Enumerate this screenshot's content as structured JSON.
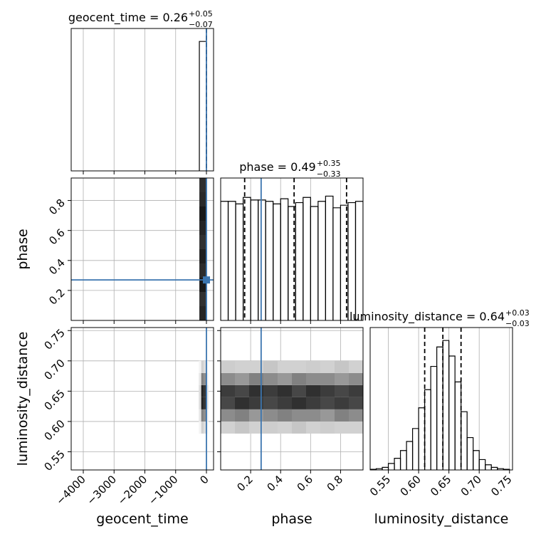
{
  "chart_data": {
    "type": "corner",
    "parameters": [
      {
        "label": "geocent_time",
        "title": "geocent_time = 0.26",
        "upper": "+0.05",
        "lower": "−0.07",
        "lim": [
          -4393,
          231
        ],
        "ticks": [
          {
            "value": -4000,
            "label": "−4000"
          },
          {
            "value": -3000,
            "label": "−3000"
          },
          {
            "value": -2000,
            "label": "−2000"
          },
          {
            "value": -1000,
            "label": "−1000"
          },
          0
        ],
        "quantiles": [
          0.19,
          0.26,
          0.31
        ],
        "truth": 0,
        "hist": {
          "bins": [
            -230,
            0
          ],
          "counts": [
            1.0
          ],
          "ylim": [
            0,
            1.1
          ]
        }
      },
      {
        "label": "phase",
        "title": "phase = 0.49",
        "upper": "+0.35",
        "lower": "−0.33",
        "lim": [
          0.0,
          0.95
        ],
        "ticks": [
          0.2,
          0.4,
          0.6,
          0.8
        ],
        "quantiles": [
          0.16,
          0.49,
          0.84
        ],
        "truth": 0.27,
        "hist": {
          "bins": [
            0.0,
            0.05,
            0.1,
            0.15,
            0.2,
            0.25,
            0.3,
            0.35,
            0.4,
            0.45,
            0.5,
            0.55,
            0.6,
            0.65,
            0.7,
            0.75,
            0.8,
            0.85,
            0.9,
            0.95
          ],
          "counts": [
            0.92,
            0.92,
            0.9,
            0.95,
            0.93,
            0.93,
            0.92,
            0.9,
            0.94,
            0.88,
            0.91,
            0.95,
            0.88,
            0.92,
            0.96,
            0.87,
            0.89,
            0.91,
            0.92
          ],
          "ylim": [
            0,
            1.1
          ]
        }
      },
      {
        "label": "luminosity_distance",
        "title": "luminosity_distance = 0.64",
        "upper": "+0.03",
        "lower": "−0.03",
        "lim": [
          0.52,
          0.755
        ],
        "ticks": [
          0.55,
          {
            "value": 0.6,
            "label": "0.60"
          },
          0.65,
          {
            "value": 0.7,
            "label": "0.70"
          },
          0.75
        ],
        "quantiles": [
          0.61,
          0.64,
          0.67
        ],
        "truth": null,
        "hist": {
          "bins": [
            0.52,
            0.53,
            0.54,
            0.55,
            0.56,
            0.57,
            0.58,
            0.59,
            0.6,
            0.61,
            0.62,
            0.63,
            0.64,
            0.65,
            0.66,
            0.67,
            0.68,
            0.69,
            0.7,
            0.71,
            0.72,
            0.73,
            0.74,
            0.75
          ],
          "counts": [
            0.005,
            0.01,
            0.02,
            0.05,
            0.09,
            0.15,
            0.22,
            0.32,
            0.48,
            0.62,
            0.8,
            0.95,
            1.0,
            0.88,
            0.68,
            0.45,
            0.25,
            0.15,
            0.08,
            0.04,
            0.02,
            0.01,
            0.005
          ],
          "ylim": [
            0,
            1.1
          ]
        }
      }
    ],
    "pairs": [
      {
        "x": 0,
        "y": 1,
        "xbins": [
          -230,
          0
        ],
        "ybins": [
          0.0,
          0.095,
          0.19,
          0.285,
          0.38,
          0.475,
          0.57,
          0.665,
          0.76,
          0.855,
          0.95
        ],
        "density": [
          [
            0.95
          ],
          [
            0.9
          ],
          [
            1.0
          ],
          [
            0.92
          ],
          [
            0.97
          ],
          [
            0.9
          ],
          [
            0.95
          ],
          [
            1.0
          ],
          [
            0.93
          ],
          [
            0.9
          ]
        ]
      },
      {
        "x": 0,
        "y": 2,
        "xbins": [
          -250,
          -170,
          -90,
          -10,
          70
        ],
        "ybins": [
          0.58,
          0.6,
          0.62,
          0.64,
          0.66,
          0.68,
          0.7
        ],
        "density": [
          [
            0.05,
            0.2,
            0.15,
            0.02
          ],
          [
            0.1,
            0.55,
            0.5,
            0.05
          ],
          [
            0.15,
            0.95,
            0.9,
            0.1
          ],
          [
            0.15,
            0.95,
            0.9,
            0.1
          ],
          [
            0.1,
            0.55,
            0.5,
            0.05
          ],
          [
            0.05,
            0.2,
            0.15,
            0.02
          ]
        ]
      },
      {
        "x": 1,
        "y": 2,
        "xbins": [
          0.0,
          0.095,
          0.19,
          0.285,
          0.38,
          0.475,
          0.57,
          0.665,
          0.76,
          0.855,
          0.95
        ],
        "ybins": [
          0.58,
          0.6,
          0.62,
          0.64,
          0.66,
          0.68,
          0.7
        ],
        "density": [
          [
            0.2,
            0.25,
            0.2,
            0.22,
            0.2,
            0.25,
            0.2,
            0.22,
            0.2,
            0.2
          ],
          [
            0.5,
            0.55,
            0.45,
            0.5,
            0.55,
            0.5,
            0.5,
            0.45,
            0.55,
            0.5
          ],
          [
            0.8,
            0.9,
            0.85,
            0.8,
            0.85,
            0.9,
            0.85,
            0.8,
            0.85,
            0.8
          ],
          [
            0.85,
            0.8,
            0.9,
            0.85,
            0.9,
            0.8,
            0.9,
            0.85,
            0.8,
            0.85
          ],
          [
            0.5,
            0.45,
            0.55,
            0.5,
            0.45,
            0.55,
            0.5,
            0.5,
            0.45,
            0.5
          ],
          [
            0.22,
            0.2,
            0.2,
            0.25,
            0.2,
            0.2,
            0.22,
            0.2,
            0.25,
            0.2
          ]
        ]
      }
    ],
    "truth_color": "#3b75af",
    "grid": true
  }
}
